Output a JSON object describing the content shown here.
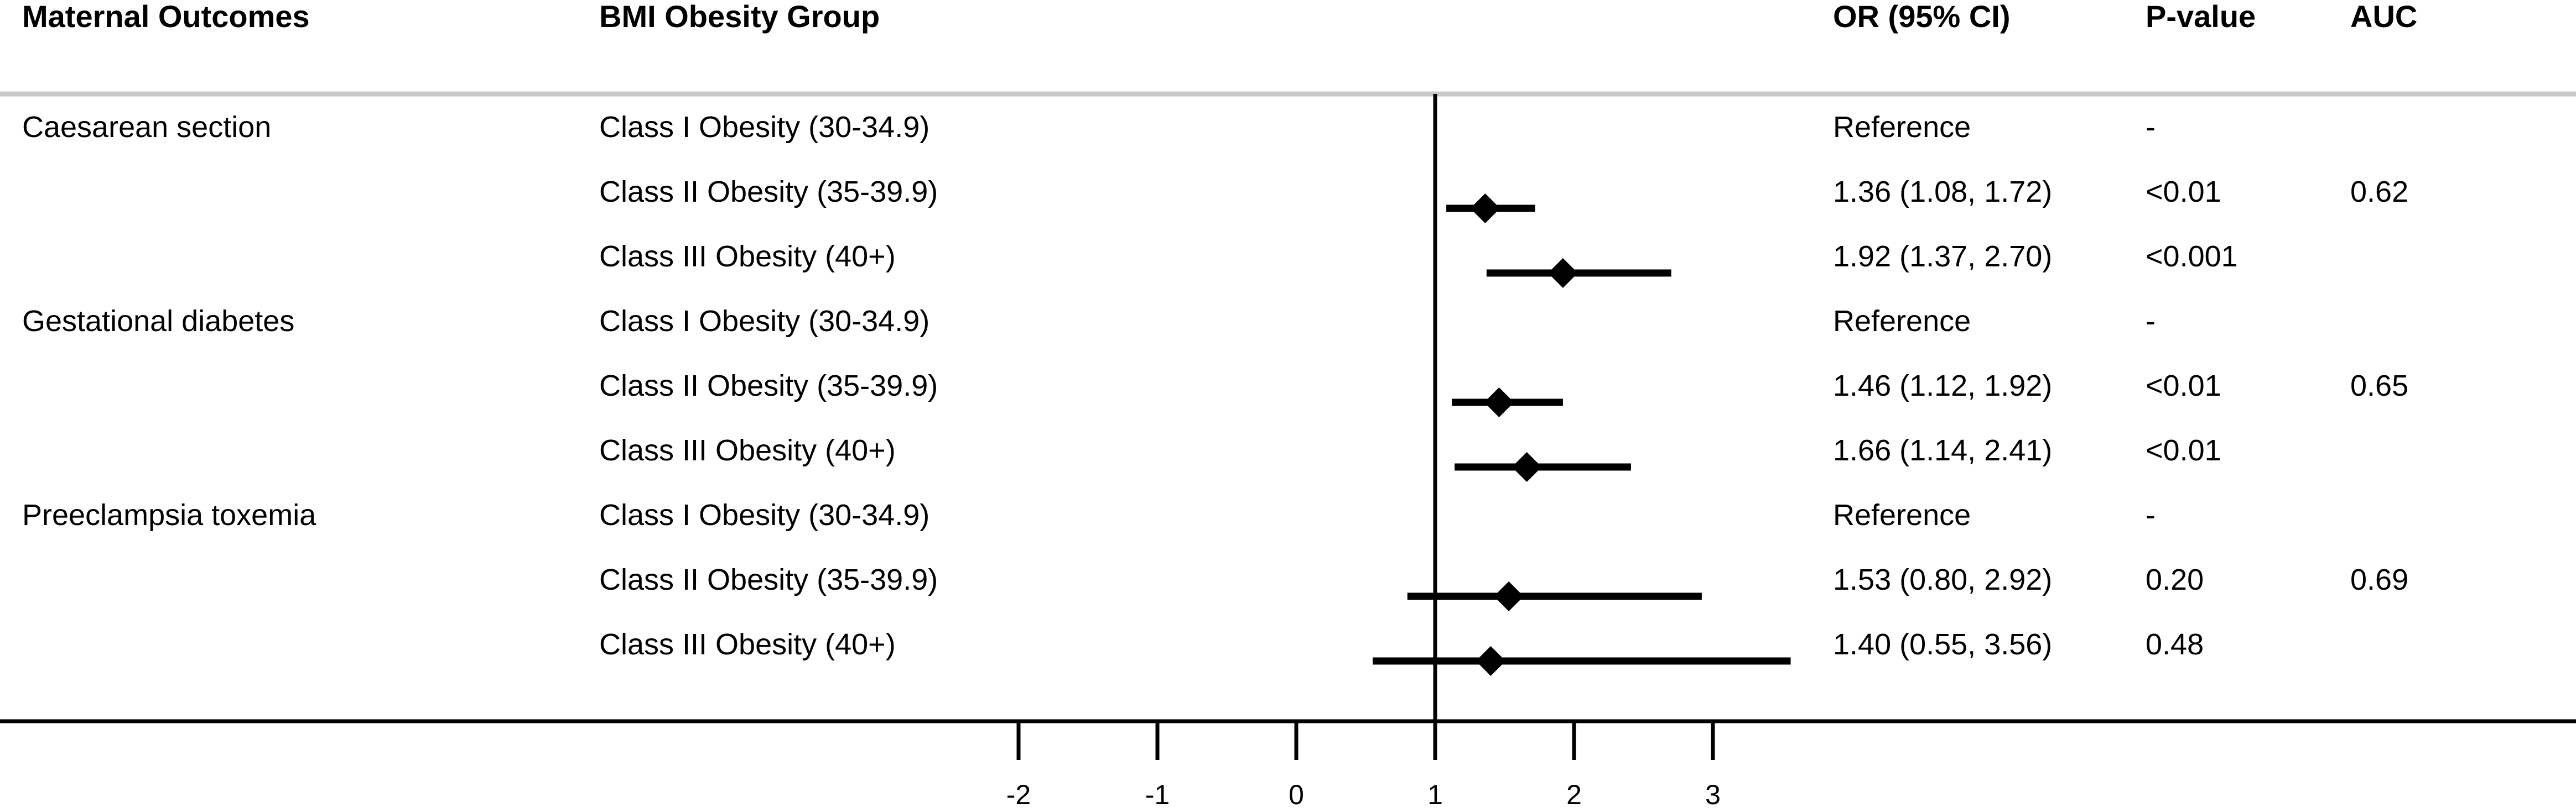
{
  "headers": {
    "outcome": "Maternal Outcomes",
    "group": "BMI Obesity Group",
    "or": "OR (95% CI)",
    "p": "P-value",
    "auc": "AUC"
  },
  "rows": [
    {
      "outcome": "Caesarean section",
      "group": "Class I Obesity (30-34.9)",
      "or_text": "Reference",
      "p": "-",
      "auc": ""
    },
    {
      "outcome": "",
      "group": "Class II Obesity (35-39.9)",
      "or_text": "1.36 (1.08, 1.72)",
      "p": "<0.01",
      "auc": "0.62"
    },
    {
      "outcome": "",
      "group": "Class III Obesity (40+)",
      "or_text": "1.92 (1.37, 2.70)",
      "p": "<0.001",
      "auc": ""
    },
    {
      "outcome": "Gestational diabetes",
      "group": "Class I Obesity (30-34.9)",
      "or_text": "Reference",
      "p": "-",
      "auc": ""
    },
    {
      "outcome": "",
      "group": "Class II Obesity (35-39.9)",
      "or_text": "1.46 (1.12, 1.92)",
      "p": "<0.01",
      "auc": "0.65"
    },
    {
      "outcome": "",
      "group": "Class III Obesity (40+)",
      "or_text": "1.66 (1.14, 2.41)",
      "p": "<0.01",
      "auc": ""
    },
    {
      "outcome": "Preeclampsia toxemia",
      "group": "Class I Obesity (30-34.9)",
      "or_text": "Reference",
      "p": "-",
      "auc": ""
    },
    {
      "outcome": "",
      "group": "Class II Obesity (35-39.9)",
      "or_text": "1.53 (0.80, 2.92)",
      "p": "0.20",
      "auc": "0.69"
    },
    {
      "outcome": "",
      "group": "Class III Obesity (40+)",
      "or_text": "1.40 (0.55, 3.56)",
      "p": "0.48",
      "auc": ""
    }
  ],
  "chart_data": {
    "type": "forest",
    "reference_line": 1,
    "xticks": [
      -2,
      -1,
      0,
      1,
      2,
      3
    ],
    "xtick_labels": [
      "-2",
      "-1",
      "0",
      "1",
      "2",
      "3"
    ],
    "points": [
      null,
      {
        "or": 1.36,
        "lo": 1.08,
        "hi": 1.72
      },
      {
        "or": 1.92,
        "lo": 1.37,
        "hi": 2.7
      },
      null,
      {
        "or": 1.46,
        "lo": 1.12,
        "hi": 1.92
      },
      {
        "or": 1.66,
        "lo": 1.14,
        "hi": 2.41
      },
      null,
      {
        "or": 1.53,
        "lo": 0.8,
        "hi": 2.92
      },
      {
        "or": 1.4,
        "lo": 0.55,
        "hi": 3.56
      }
    ]
  }
}
